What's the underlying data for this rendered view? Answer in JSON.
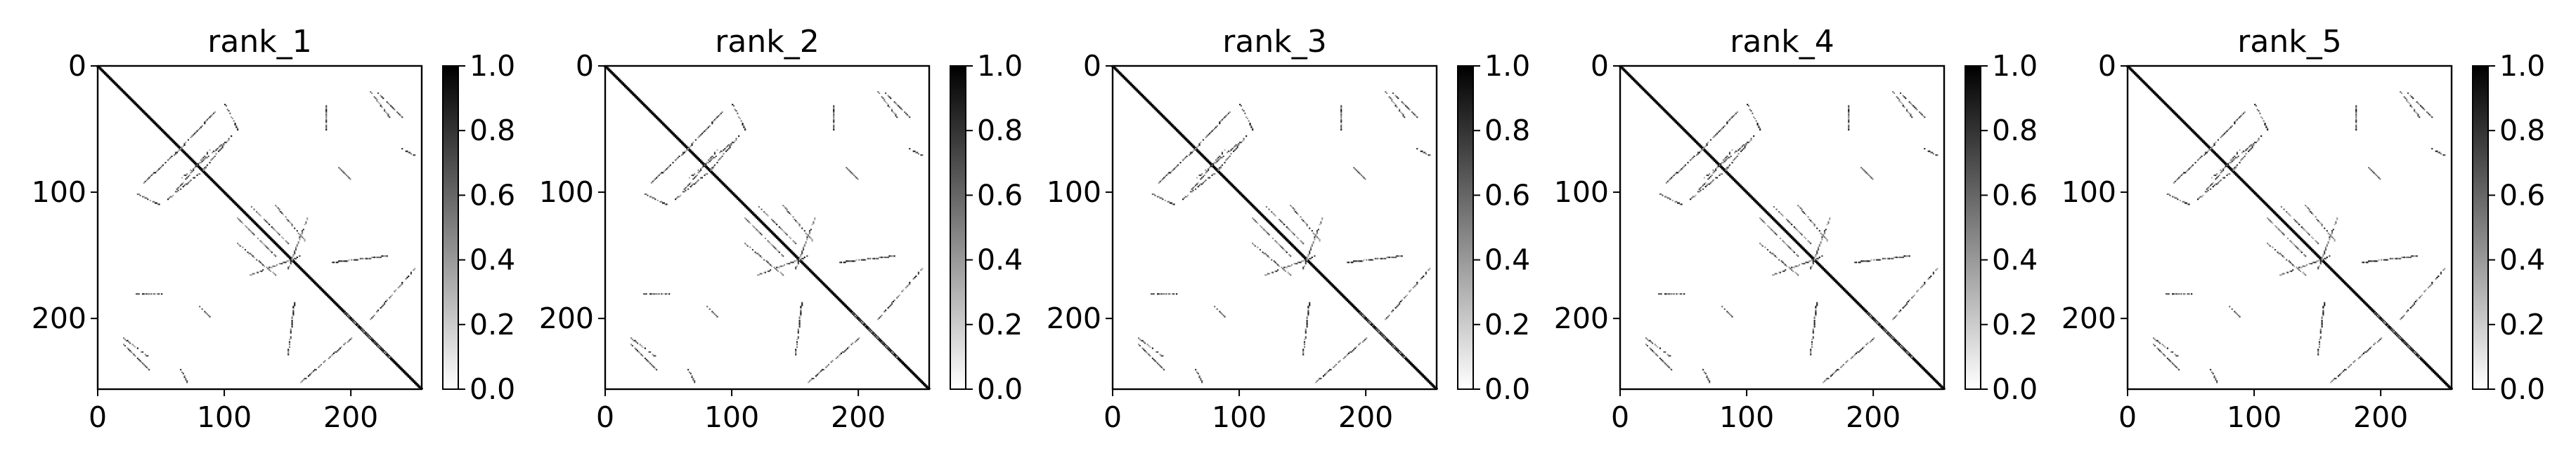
{
  "figure": {
    "background": "#ffffff",
    "colormap": [
      "#ffffff",
      "#000000"
    ]
  },
  "chart_data": [
    {
      "type": "heatmap",
      "title": "rank_1",
      "xlim": [
        0,
        256
      ],
      "ylim": [
        256,
        0
      ],
      "xticks": [
        0,
        100,
        200
      ],
      "yticks": [
        0,
        100,
        200
      ],
      "colorbar": {
        "range": [
          0,
          1
        ],
        "ticks": [
          "0.0",
          "0.2",
          "0.4",
          "0.6",
          "0.8",
          "1.0"
        ]
      },
      "matrix_size": 256,
      "diagonal": {
        "from": 0,
        "to": 256,
        "value": 1.0
      },
      "contact_segments": [
        {
          "from": [
            55,
            105
          ],
          "to": [
            85,
            80
          ]
        },
        {
          "from": [
            60,
            70
          ],
          "to": [
            92,
            36
          ]
        },
        {
          "from": [
            66,
            88
          ],
          "to": [
            100,
            60
          ]
        },
        {
          "from": [
            100,
            30
          ],
          "to": [
            110,
            50
          ]
        },
        {
          "from": [
            120,
            110
          ],
          "to": [
            150,
            140
          ]
        },
        {
          "from": [
            110,
            140
          ],
          "to": [
            140,
            165
          ]
        },
        {
          "from": [
            165,
            120
          ],
          "to": [
            150,
            160
          ]
        },
        {
          "from": [
            20,
            220
          ],
          "to": [
            40,
            240
          ]
        },
        {
          "from": [
            160,
            250
          ],
          "to": [
            200,
            215
          ]
        },
        {
          "from": [
            195,
            195
          ],
          "to": [
            230,
            230
          ]
        },
        {
          "from": [
            228,
            150
          ],
          "to": [
            185,
            155
          ]
        },
        {
          "from": [
            30,
            180
          ],
          "to": [
            50,
            180
          ]
        },
        {
          "from": [
            215,
            20
          ],
          "to": [
            230,
            40
          ]
        },
        {
          "from": [
            240,
            65
          ],
          "to": [
            250,
            70
          ]
        },
        {
          "from": [
            190,
            80
          ],
          "to": [
            200,
            90
          ]
        }
      ]
    },
    {
      "type": "heatmap",
      "title": "rank_2",
      "xlim": [
        0,
        256
      ],
      "ylim": [
        256,
        0
      ],
      "xticks": [
        0,
        100,
        200
      ],
      "yticks": [
        0,
        100,
        200
      ],
      "colorbar": {
        "range": [
          0,
          1
        ],
        "ticks": [
          "0.0",
          "0.2",
          "0.4",
          "0.6",
          "0.8",
          "1.0"
        ]
      },
      "matrix_size": 256,
      "diagonal": {
        "from": 0,
        "to": 256,
        "value": 1.0
      },
      "contact_segments": [
        {
          "from": [
            55,
            105
          ],
          "to": [
            85,
            80
          ]
        },
        {
          "from": [
            60,
            70
          ],
          "to": [
            92,
            36
          ]
        },
        {
          "from": [
            66,
            88
          ],
          "to": [
            100,
            60
          ]
        },
        {
          "from": [
            100,
            30
          ],
          "to": [
            110,
            50
          ]
        },
        {
          "from": [
            120,
            110
          ],
          "to": [
            150,
            140
          ]
        },
        {
          "from": [
            110,
            140
          ],
          "to": [
            140,
            165
          ]
        },
        {
          "from": [
            165,
            120
          ],
          "to": [
            150,
            160
          ]
        },
        {
          "from": [
            20,
            220
          ],
          "to": [
            40,
            240
          ]
        },
        {
          "from": [
            160,
            250
          ],
          "to": [
            200,
            215
          ]
        },
        {
          "from": [
            195,
            195
          ],
          "to": [
            230,
            230
          ]
        },
        {
          "from": [
            228,
            150
          ],
          "to": [
            185,
            155
          ]
        },
        {
          "from": [
            30,
            180
          ],
          "to": [
            50,
            180
          ]
        },
        {
          "from": [
            215,
            20
          ],
          "to": [
            230,
            40
          ]
        },
        {
          "from": [
            240,
            65
          ],
          "to": [
            250,
            70
          ]
        },
        {
          "from": [
            190,
            80
          ],
          "to": [
            200,
            90
          ]
        }
      ]
    },
    {
      "type": "heatmap",
      "title": "rank_3",
      "xlim": [
        0,
        256
      ],
      "ylim": [
        256,
        0
      ],
      "xticks": [
        0,
        100,
        200
      ],
      "yticks": [
        0,
        100,
        200
      ],
      "colorbar": {
        "range": [
          0,
          1
        ],
        "ticks": [
          "0.0",
          "0.2",
          "0.4",
          "0.6",
          "0.8",
          "1.0"
        ]
      },
      "matrix_size": 256,
      "diagonal": {
        "from": 0,
        "to": 256,
        "value": 1.0
      },
      "contact_segments": [
        {
          "from": [
            55,
            105
          ],
          "to": [
            85,
            80
          ]
        },
        {
          "from": [
            60,
            70
          ],
          "to": [
            92,
            36
          ]
        },
        {
          "from": [
            66,
            88
          ],
          "to": [
            100,
            60
          ]
        },
        {
          "from": [
            100,
            30
          ],
          "to": [
            110,
            50
          ]
        },
        {
          "from": [
            120,
            110
          ],
          "to": [
            150,
            140
          ]
        },
        {
          "from": [
            110,
            140
          ],
          "to": [
            140,
            165
          ]
        },
        {
          "from": [
            165,
            120
          ],
          "to": [
            150,
            160
          ]
        },
        {
          "from": [
            20,
            220
          ],
          "to": [
            40,
            240
          ]
        },
        {
          "from": [
            160,
            250
          ],
          "to": [
            200,
            215
          ]
        },
        {
          "from": [
            195,
            195
          ],
          "to": [
            230,
            230
          ]
        },
        {
          "from": [
            228,
            150
          ],
          "to": [
            185,
            155
          ]
        },
        {
          "from": [
            30,
            180
          ],
          "to": [
            50,
            180
          ]
        },
        {
          "from": [
            215,
            20
          ],
          "to": [
            230,
            40
          ]
        },
        {
          "from": [
            240,
            65
          ],
          "to": [
            250,
            70
          ]
        },
        {
          "from": [
            190,
            80
          ],
          "to": [
            200,
            90
          ]
        }
      ]
    },
    {
      "type": "heatmap",
      "title": "rank_4",
      "xlim": [
        0,
        256
      ],
      "ylim": [
        256,
        0
      ],
      "xticks": [
        0,
        100,
        200
      ],
      "yticks": [
        0,
        100,
        200
      ],
      "colorbar": {
        "range": [
          0,
          1
        ],
        "ticks": [
          "0.0",
          "0.2",
          "0.4",
          "0.6",
          "0.8",
          "1.0"
        ]
      },
      "matrix_size": 256,
      "diagonal": {
        "from": 0,
        "to": 256,
        "value": 1.0
      },
      "contact_segments": [
        {
          "from": [
            55,
            105
          ],
          "to": [
            85,
            80
          ]
        },
        {
          "from": [
            60,
            70
          ],
          "to": [
            92,
            36
          ]
        },
        {
          "from": [
            66,
            88
          ],
          "to": [
            100,
            60
          ]
        },
        {
          "from": [
            100,
            30
          ],
          "to": [
            110,
            50
          ]
        },
        {
          "from": [
            120,
            110
          ],
          "to": [
            150,
            140
          ]
        },
        {
          "from": [
            110,
            140
          ],
          "to": [
            140,
            165
          ]
        },
        {
          "from": [
            165,
            120
          ],
          "to": [
            150,
            160
          ]
        },
        {
          "from": [
            20,
            220
          ],
          "to": [
            40,
            240
          ]
        },
        {
          "from": [
            160,
            250
          ],
          "to": [
            200,
            215
          ]
        },
        {
          "from": [
            195,
            195
          ],
          "to": [
            230,
            230
          ]
        },
        {
          "from": [
            228,
            150
          ],
          "to": [
            185,
            155
          ]
        },
        {
          "from": [
            30,
            180
          ],
          "to": [
            50,
            180
          ]
        },
        {
          "from": [
            215,
            20
          ],
          "to": [
            230,
            40
          ]
        },
        {
          "from": [
            240,
            65
          ],
          "to": [
            250,
            70
          ]
        },
        {
          "from": [
            190,
            80
          ],
          "to": [
            200,
            90
          ]
        }
      ]
    },
    {
      "type": "heatmap",
      "title": "rank_5",
      "xlim": [
        0,
        256
      ],
      "ylim": [
        256,
        0
      ],
      "xticks": [
        0,
        100,
        200
      ],
      "yticks": [
        0,
        100,
        200
      ],
      "colorbar": {
        "range": [
          0,
          1
        ],
        "ticks": [
          "0.0",
          "0.2",
          "0.4",
          "0.6",
          "0.8",
          "1.0"
        ]
      },
      "matrix_size": 256,
      "diagonal": {
        "from": 0,
        "to": 256,
        "value": 1.0
      },
      "contact_segments": [
        {
          "from": [
            55,
            105
          ],
          "to": [
            85,
            80
          ]
        },
        {
          "from": [
            60,
            70
          ],
          "to": [
            92,
            36
          ]
        },
        {
          "from": [
            66,
            88
          ],
          "to": [
            100,
            60
          ]
        },
        {
          "from": [
            100,
            30
          ],
          "to": [
            110,
            50
          ]
        },
        {
          "from": [
            120,
            110
          ],
          "to": [
            150,
            140
          ]
        },
        {
          "from": [
            110,
            140
          ],
          "to": [
            140,
            165
          ]
        },
        {
          "from": [
            165,
            120
          ],
          "to": [
            150,
            160
          ]
        },
        {
          "from": [
            20,
            220
          ],
          "to": [
            40,
            240
          ]
        },
        {
          "from": [
            160,
            250
          ],
          "to": [
            200,
            215
          ]
        },
        {
          "from": [
            195,
            195
          ],
          "to": [
            230,
            230
          ]
        },
        {
          "from": [
            228,
            150
          ],
          "to": [
            185,
            155
          ]
        },
        {
          "from": [
            30,
            180
          ],
          "to": [
            50,
            180
          ]
        },
        {
          "from": [
            215,
            20
          ],
          "to": [
            230,
            40
          ]
        },
        {
          "from": [
            240,
            65
          ],
          "to": [
            250,
            70
          ]
        },
        {
          "from": [
            190,
            80
          ],
          "to": [
            200,
            90
          ]
        }
      ]
    }
  ]
}
